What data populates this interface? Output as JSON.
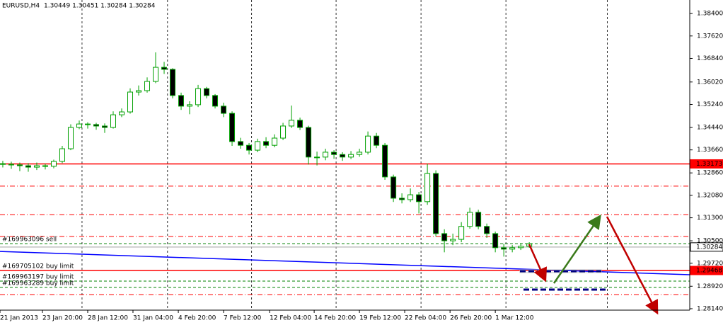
{
  "chart_data": {
    "type": "candlestick",
    "symbol": "EURUSD,H4",
    "quote": "1.30449 1.30451 1.30284 1.30284",
    "bull_color": "#ffffff",
    "bear_color": "#000000",
    "wick_color": "#00a000",
    "xlim": [
      -0.33,
      80.9
    ],
    "ylim": [
      1.2809,
      1.3887
    ],
    "yticks": [
      {
        "value": 1.384,
        "label": "1.38400"
      },
      {
        "value": 1.3762,
        "label": "1.37620"
      },
      {
        "value": 1.3684,
        "label": "1.36840"
      },
      {
        "value": 1.3602,
        "label": "1.36020"
      },
      {
        "value": 1.3524,
        "label": "1.35240"
      },
      {
        "value": 1.3444,
        "label": "1.34440"
      },
      {
        "value": 1.3366,
        "label": "1.33660"
      },
      {
        "value": 1.3286,
        "label": "1.32860"
      },
      {
        "value": 1.3208,
        "label": "1.32080"
      },
      {
        "value": 1.313,
        "label": "1.31300"
      },
      {
        "value": 1.305,
        "label": "1.30500"
      },
      {
        "value": 1.2972,
        "label": "1.29720"
      },
      {
        "value": 1.2892,
        "label": "1.28920"
      },
      {
        "value": 1.2814,
        "label": "1.28140"
      }
    ],
    "xticks": [
      {
        "value": -0.33,
        "label": "21 Jan 2013"
      },
      {
        "value": 4.67,
        "label": "23 Jan 20:00"
      },
      {
        "value": 10,
        "label": "28 Jan 12:00"
      },
      {
        "value": 15.33,
        "label": "31 Jan 04:00"
      },
      {
        "value": 20.67,
        "label": "4 Feb 20:00"
      },
      {
        "value": 26,
        "label": "7 Feb 12:00"
      },
      {
        "value": 31.42,
        "label": "12 Feb 04:00"
      },
      {
        "value": 36.67,
        "label": "14 Feb 20:00"
      },
      {
        "value": 42,
        "label": "19 Feb 12:00"
      },
      {
        "value": 47.33,
        "label": "22 Feb 04:00"
      },
      {
        "value": 52.67,
        "label": "26 Feb 20:00"
      },
      {
        "value": 58,
        "label": "1 Mar 12:00"
      }
    ],
    "vgrid": [
      9.33,
      19.4,
      29.3,
      39.25,
      49.25,
      59.25,
      71.2
    ],
    "candles": [
      [
        1.3318,
        1.3328,
        1.3305,
        1.3316
      ],
      [
        1.3316,
        1.3325,
        1.33,
        1.3314
      ],
      [
        1.3314,
        1.3322,
        1.3292,
        1.3311
      ],
      [
        1.3311,
        1.332,
        1.329,
        1.3306
      ],
      [
        1.3306,
        1.3322,
        1.3296,
        1.3311
      ],
      [
        1.3311,
        1.3318,
        1.3298,
        1.3309
      ],
      [
        1.3309,
        1.3332,
        1.3302,
        1.3326
      ],
      [
        1.3326,
        1.338,
        1.332,
        1.337
      ],
      [
        1.337,
        1.3455,
        1.3365,
        1.3444
      ],
      [
        1.3444,
        1.3468,
        1.3438,
        1.3456
      ],
      [
        1.3456,
        1.3462,
        1.344,
        1.3454
      ],
      [
        1.3454,
        1.346,
        1.3436,
        1.3449
      ],
      [
        1.3449,
        1.3458,
        1.3425,
        1.3444
      ],
      [
        1.3444,
        1.35,
        1.344,
        1.3488
      ],
      [
        1.3488,
        1.351,
        1.348,
        1.3498
      ],
      [
        1.3498,
        1.358,
        1.3492,
        1.3567
      ],
      [
        1.3567,
        1.359,
        1.3555,
        1.3572
      ],
      [
        1.3572,
        1.3618,
        1.3565,
        1.3604
      ],
      [
        1.3604,
        1.3705,
        1.3598,
        1.3653
      ],
      [
        1.3653,
        1.3672,
        1.363,
        1.3646
      ],
      [
        1.3646,
        1.365,
        1.3545,
        1.3555
      ],
      [
        1.3555,
        1.3565,
        1.3505,
        1.3518
      ],
      [
        1.3518,
        1.3535,
        1.349,
        1.3523
      ],
      [
        1.3523,
        1.3592,
        1.3515,
        1.3579
      ],
      [
        1.3579,
        1.3585,
        1.3545,
        1.3555
      ],
      [
        1.3555,
        1.356,
        1.351,
        1.3518
      ],
      [
        1.3518,
        1.353,
        1.348,
        1.3493
      ],
      [
        1.3493,
        1.35,
        1.338,
        1.3395
      ],
      [
        1.3395,
        1.3408,
        1.337,
        1.3382
      ],
      [
        1.3382,
        1.339,
        1.335,
        1.3365
      ],
      [
        1.3365,
        1.3405,
        1.3358,
        1.3395
      ],
      [
        1.3395,
        1.341,
        1.3372,
        1.3382
      ],
      [
        1.3382,
        1.342,
        1.3375,
        1.3407
      ],
      [
        1.3407,
        1.346,
        1.34,
        1.3449
      ],
      [
        1.3449,
        1.352,
        1.3442,
        1.3469
      ],
      [
        1.3469,
        1.3478,
        1.3435,
        1.3444
      ],
      [
        1.3444,
        1.345,
        1.3315,
        1.3341
      ],
      [
        1.3341,
        1.336,
        1.3312,
        1.3341
      ],
      [
        1.3341,
        1.337,
        1.333,
        1.3358
      ],
      [
        1.3358,
        1.3365,
        1.3335,
        1.335
      ],
      [
        1.335,
        1.3358,
        1.3328,
        1.3341
      ],
      [
        1.3341,
        1.3362,
        1.3334,
        1.335
      ],
      [
        1.335,
        1.337,
        1.3342,
        1.3358
      ],
      [
        1.3358,
        1.343,
        1.335,
        1.3414
      ],
      [
        1.3414,
        1.3425,
        1.3372,
        1.3382
      ],
      [
        1.3382,
        1.339,
        1.3262,
        1.3272
      ],
      [
        1.3272,
        1.328,
        1.3185,
        1.3198
      ],
      [
        1.3198,
        1.3215,
        1.318,
        1.3193
      ],
      [
        1.3193,
        1.3232,
        1.3185,
        1.321
      ],
      [
        1.321,
        1.322,
        1.3145,
        1.3186
      ],
      [
        1.3186,
        1.3318,
        1.3175,
        1.3284
      ],
      [
        1.3284,
        1.3295,
        1.3065,
        1.3075
      ],
      [
        1.3075,
        1.309,
        1.301,
        1.305
      ],
      [
        1.305,
        1.3075,
        1.3035,
        1.3055
      ],
      [
        1.3055,
        1.3115,
        1.3045,
        1.31
      ],
      [
        1.31,
        1.3165,
        1.3092,
        1.3149
      ],
      [
        1.3149,
        1.3158,
        1.309,
        1.31
      ],
      [
        1.31,
        1.311,
        1.306,
        1.3075
      ],
      [
        1.3075,
        1.3082,
        1.301,
        1.3026
      ],
      [
        1.3026,
        1.304,
        1.2995,
        1.3021
      ],
      [
        1.3021,
        1.3035,
        1.301,
        1.3026
      ],
      [
        1.3026,
        1.3042,
        1.3018,
        1.3031
      ],
      [
        1.3031,
        1.3045,
        1.3026,
        1.304
      ]
    ],
    "ma": {
      "color": "#0000ff",
      "x": [
        -0.33,
        80.9
      ],
      "values": [
        1.3013,
        1.2932
      ]
    },
    "levels": [
      {
        "value": 1.33173,
        "color": "#ff0000",
        "style": "solid",
        "box": "#ff0000"
      },
      {
        "value": 1.324,
        "color": "#ff0000",
        "style": "dashdot"
      },
      {
        "value": 1.3141,
        "color": "#ff0000",
        "style": "dashdot"
      },
      {
        "value": 1.3065,
        "color": "#ff0000",
        "style": "dashdot"
      },
      {
        "value": 1.304,
        "color": "#008000",
        "style": "dashed",
        "order": "#169963096 sell"
      },
      {
        "value": 1.30284,
        "color": "#c0c0c0",
        "style": "solid",
        "box": "#ffffff"
      },
      {
        "value": 1.29468,
        "color": "#ff0000",
        "style": "solid",
        "box": "#ff0000",
        "order": "#169705102 buy limit"
      },
      {
        "value": 1.291,
        "color": "#008000",
        "style": "dashed",
        "order": "#169963197 buy limit"
      },
      {
        "value": 1.2888,
        "color": "#008000",
        "style": "dashed",
        "order": "#169963289 buy limit"
      },
      {
        "value": 1.2863,
        "color": "#ff0000",
        "style": "dashdot"
      }
    ]
  }
}
